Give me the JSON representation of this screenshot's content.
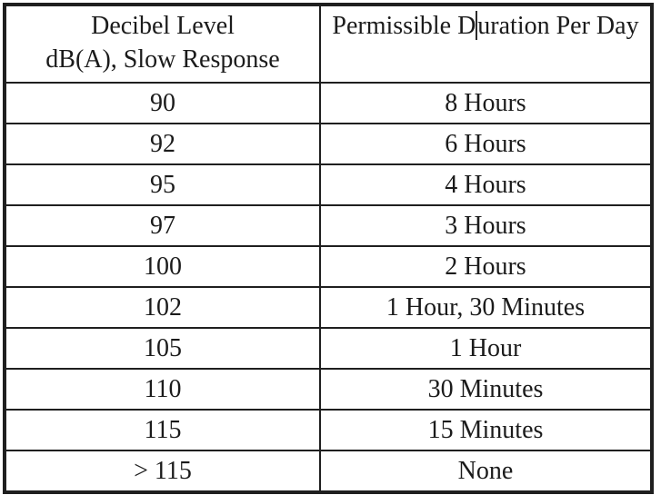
{
  "table": {
    "title_semantic": "Permissible Noise Exposure Table",
    "header": {
      "col1_line1": "Decibel Level",
      "col1_line2": "dB(A), Slow Response",
      "col2_before_caret": "Permissible D",
      "col2_after_caret": "uration Per Day"
    },
    "rows": [
      {
        "decibel": "90",
        "duration": "8 Hours"
      },
      {
        "decibel": "92",
        "duration": "6 Hours"
      },
      {
        "decibel": "95",
        "duration": "4 Hours"
      },
      {
        "decibel": "97",
        "duration": "3 Hours"
      },
      {
        "decibel": "100",
        "duration": "2 Hours"
      },
      {
        "decibel": "102",
        "duration": "1 Hour, 30 Minutes"
      },
      {
        "decibel": "105",
        "duration": "1 Hour"
      },
      {
        "decibel": "110",
        "duration": "30 Minutes"
      },
      {
        "decibel": "115",
        "duration": "15 Minutes"
      },
      {
        "decibel": "> 115",
        "duration": "None"
      }
    ]
  },
  "chart_data": {
    "type": "table",
    "columns": [
      "Decibel Level dB(A), Slow Response",
      "Permissible Duration Per Day"
    ],
    "rows": [
      [
        "90",
        "8 Hours"
      ],
      [
        "92",
        "6 Hours"
      ],
      [
        "95",
        "4 Hours"
      ],
      [
        "97",
        "3 Hours"
      ],
      [
        "100",
        "2 Hours"
      ],
      [
        "102",
        "1 Hour, 30 Minutes"
      ],
      [
        "105",
        "1 Hour"
      ],
      [
        "110",
        "30 Minutes"
      ],
      [
        "115",
        "15 Minutes"
      ],
      [
        "> 115",
        "None"
      ]
    ]
  },
  "colors": {
    "border": "#1f1f1f",
    "text": "#1b1b1b",
    "background": "#ffffff",
    "caret": "#2a2a2a"
  }
}
